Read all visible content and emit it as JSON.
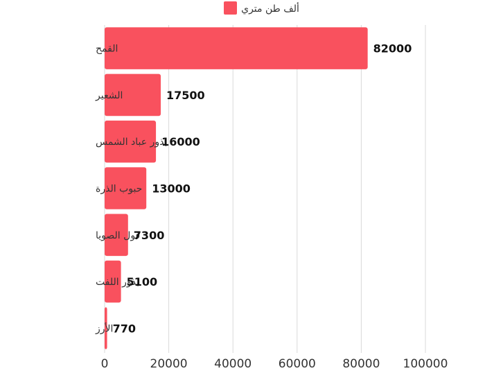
{
  "colors": {
    "bar": "#F9515E",
    "grid": "#D9D9D9"
  },
  "chart_data": {
    "type": "bar",
    "orientation": "horizontal",
    "categories": [
      "القمح",
      "الشعير",
      "بذور عباد الشمس",
      "حبوب الذرة",
      "فول الصويا",
      "بذور اللفت",
      "الأرز"
    ],
    "series": [
      {
        "name": "ألف طن متري",
        "values": [
          82000,
          17500,
          16000,
          13000,
          7300,
          5100,
          770
        ]
      }
    ],
    "xlim": [
      0,
      100000
    ],
    "xticks": [
      0,
      20000,
      40000,
      60000,
      80000,
      100000
    ],
    "xtick_labels": [
      "0",
      "20000",
      "40000",
      "60000",
      "80000",
      "100000"
    ],
    "grid": true,
    "legend_position": "top-center",
    "data_labels": true
  }
}
